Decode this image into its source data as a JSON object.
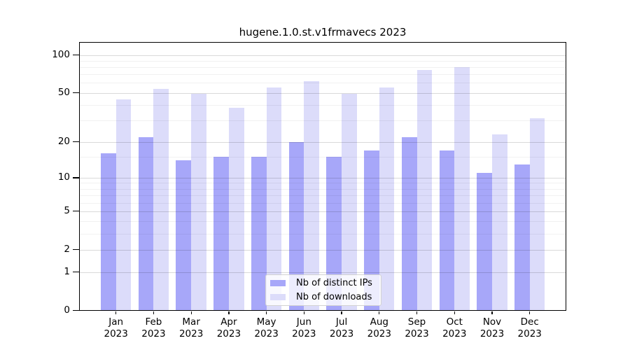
{
  "title": "hugene.1.0.st.v1frmavecs 2023",
  "chart_data": {
    "type": "bar",
    "title": "hugene.1.0.st.v1frmavecs 2023",
    "y_scale": "log1p",
    "grid": true,
    "legend_position": "lower center",
    "categories": [
      "Jan",
      "Feb",
      "Mar",
      "Apr",
      "May",
      "Jun",
      "Jul",
      "Aug",
      "Sep",
      "Oct",
      "Nov",
      "Dec"
    ],
    "category_year": "2023",
    "series": [
      {
        "name": "Nb of distinct IPs",
        "color": "#a7a7f9",
        "values": [
          16,
          22,
          14,
          15,
          15,
          20,
          15,
          17,
          22,
          17,
          11,
          13
        ]
      },
      {
        "name": "Nb of downloads",
        "color": "#dcdcfa",
        "values": [
          44,
          54,
          49,
          38,
          55,
          62,
          49,
          55,
          76,
          80,
          23,
          31
        ]
      }
    ],
    "y_ticks": [
      0,
      1,
      2,
      5,
      10,
      20,
      50,
      100
    ],
    "y_minor_gridlines": [
      3,
      4,
      6,
      7,
      8,
      9,
      15,
      30,
      40,
      60,
      70,
      80,
      90
    ],
    "ylim": [
      0,
      126
    ],
    "xlabel": "",
    "ylabel": ""
  }
}
